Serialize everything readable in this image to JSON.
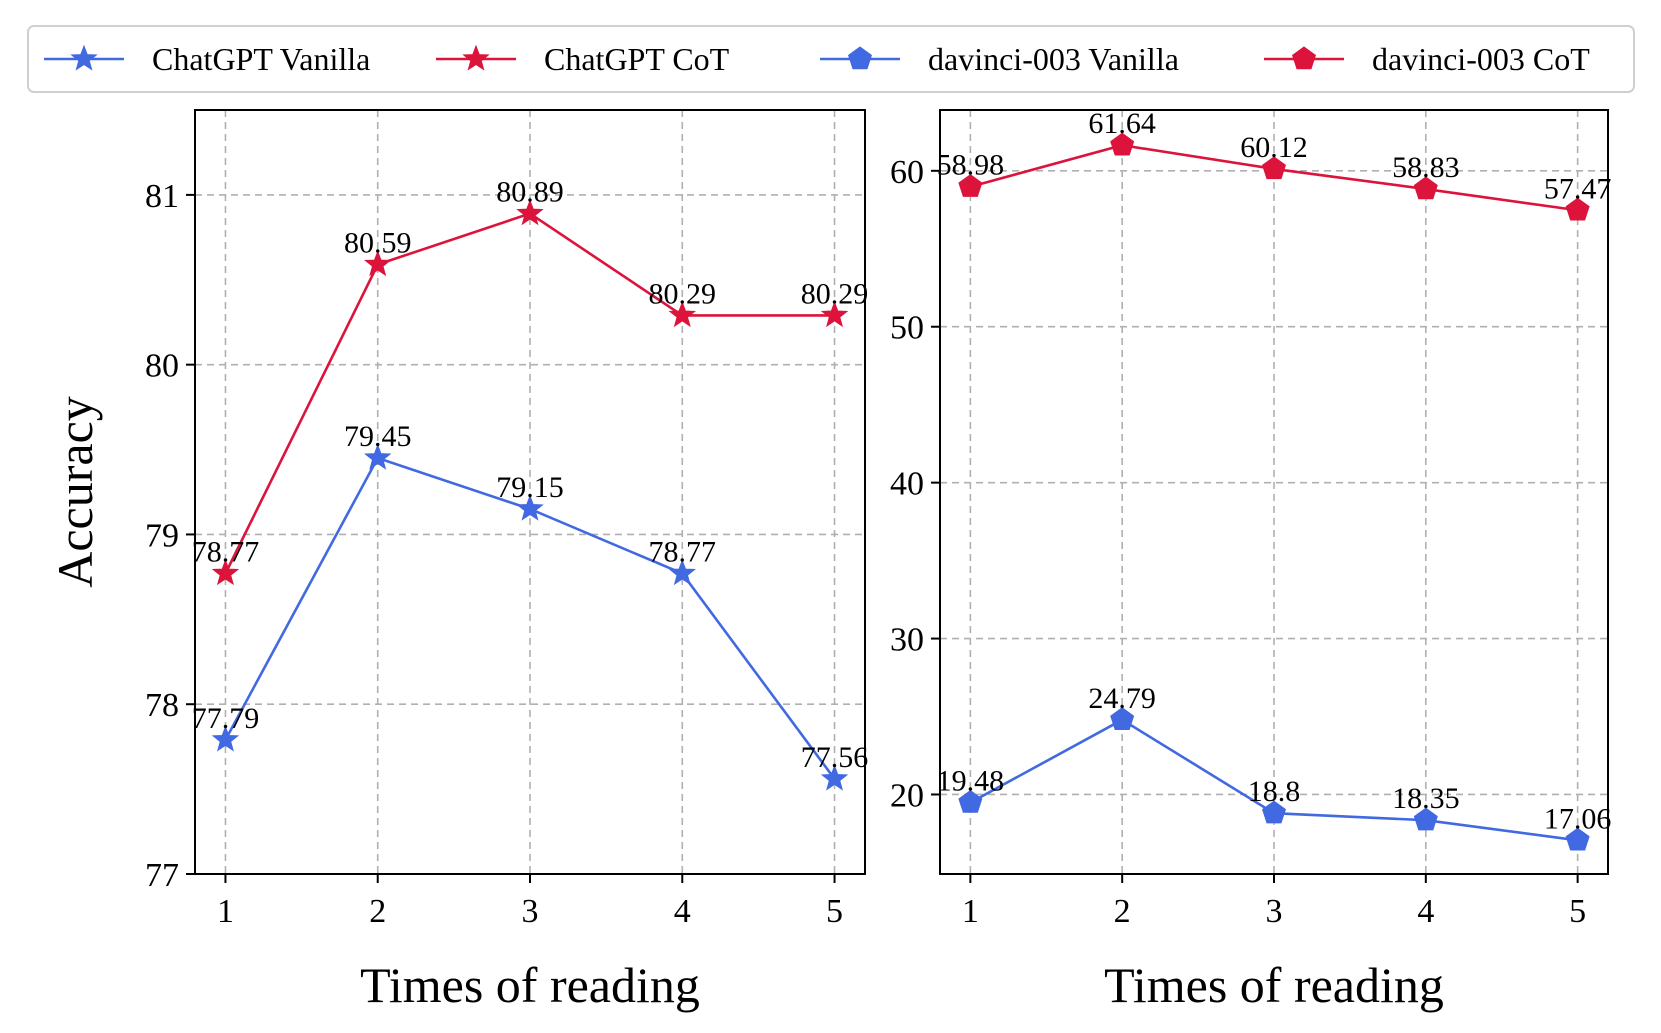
{
  "colors": {
    "vanilla": "#4169e1",
    "cot": "#dc143c"
  },
  "legend": [
    {
      "label": "ChatGPT Vanilla",
      "color": "#4169e1",
      "marker": "star"
    },
    {
      "label": "ChatGPT CoT",
      "color": "#dc143c",
      "marker": "star"
    },
    {
      "label": "davinci-003 Vanilla",
      "color": "#4169e1",
      "marker": "pentagon"
    },
    {
      "label": "davinci-003 CoT",
      "color": "#dc143c",
      "marker": "pentagon"
    }
  ],
  "chart_data": [
    {
      "type": "line",
      "title": "",
      "xlabel": "Times of reading",
      "ylabel": "Accuracy",
      "x": [
        1,
        2,
        3,
        4,
        5
      ],
      "xticks": [
        "1",
        "2",
        "3",
        "4",
        "5"
      ],
      "ylim": [
        77,
        81.5
      ],
      "yticks": [
        77,
        78,
        79,
        80,
        81
      ],
      "grid": true,
      "series": [
        {
          "name": "ChatGPT Vanilla",
          "marker": "star",
          "color": "#4169e1",
          "values": [
            77.79,
            79.45,
            79.15,
            78.77,
            77.56
          ],
          "labels": [
            "77.79",
            "79.45",
            "79.15",
            "78.77",
            "77.56"
          ]
        },
        {
          "name": "ChatGPT CoT",
          "marker": "star",
          "color": "#dc143c",
          "values": [
            78.77,
            80.59,
            80.89,
            80.29,
            80.29
          ],
          "labels": [
            "78.77",
            "80.59",
            "80.89",
            "80.29",
            "80.29"
          ]
        }
      ]
    },
    {
      "type": "line",
      "title": "",
      "xlabel": "Times of reading",
      "ylabel": "",
      "x": [
        1,
        2,
        3,
        4,
        5
      ],
      "xticks": [
        "1",
        "2",
        "3",
        "4",
        "5"
      ],
      "ylim": [
        14.9,
        63.9
      ],
      "yticks": [
        20,
        30,
        40,
        50,
        60
      ],
      "grid": true,
      "series": [
        {
          "name": "davinci-003 Vanilla",
          "marker": "pentagon",
          "color": "#4169e1",
          "values": [
            19.48,
            24.79,
            18.8,
            18.35,
            17.06
          ],
          "labels": [
            "19.48",
            "24.79",
            "18.8",
            "18.35",
            "17.06"
          ]
        },
        {
          "name": "davinci-003 CoT",
          "marker": "pentagon",
          "color": "#dc143c",
          "values": [
            58.98,
            61.64,
            60.12,
            58.83,
            57.47
          ],
          "labels": [
            "58.98",
            "61.64",
            "60.12",
            "58.83",
            "57.47"
          ]
        }
      ]
    }
  ]
}
